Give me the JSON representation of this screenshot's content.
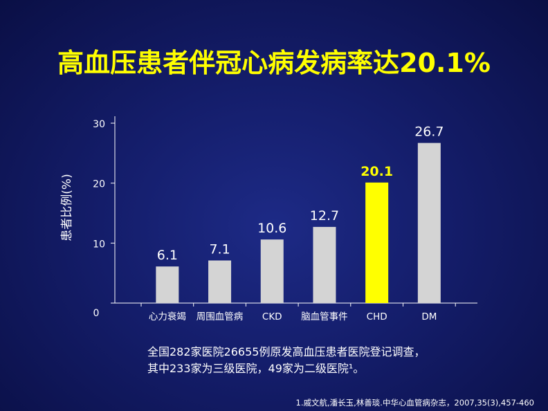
{
  "title": "高血压患者伴冠心病发病率达20.1%",
  "chart_data": {
    "type": "bar",
    "categories": [
      "心力衰竭",
      "周围血管病",
      "CKD",
      "脑血管事件",
      "CHD",
      "DM"
    ],
    "values": [
      6.1,
      7.1,
      10.6,
      12.7,
      20.1,
      26.7
    ],
    "value_labels": [
      "6.1",
      "7.1",
      "10.6",
      "12.7",
      "20.1",
      "26.7"
    ],
    "highlight_index": 4,
    "ylabel": "患者比例(%)",
    "xlabel": "",
    "ylim": [
      0,
      30
    ],
    "yticks": [
      0,
      10,
      20,
      30
    ],
    "ytick_labels": [
      "0",
      "10",
      "20",
      "30"
    ],
    "grid": false,
    "colors": {
      "bar": "#d4d4d4",
      "highlight_bar": "#ffff00",
      "label": "#ffffff",
      "highlight_label": "#ffff00",
      "axis": "#ffffff"
    }
  },
  "footnote": {
    "line1": "全国282家医院26655例原发高血压患者医院登记调查，",
    "line2": "其中233家为三级医院，49家为二级医院¹。"
  },
  "reference": "1.戚文航,潘长玉,林善琰.中华心血管病杂志，2007,35(3),457-460"
}
